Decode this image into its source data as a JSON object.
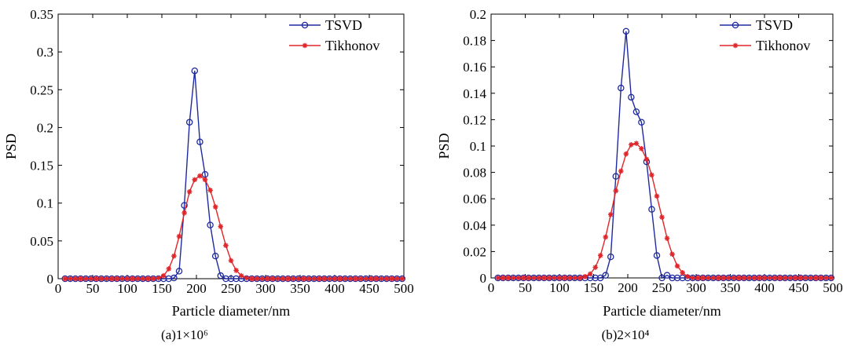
{
  "chart_data": [
    {
      "type": "line",
      "caption": "(a)1×10⁶",
      "xlabel": "Particle diameter/nm",
      "ylabel": "PSD",
      "xlim": [
        0,
        500
      ],
      "ylim": [
        0,
        0.35
      ],
      "xticks": [
        "0",
        "50",
        "100",
        "150",
        "200",
        "250",
        "300",
        "350",
        "400",
        "450",
        "500"
      ],
      "yticks": [
        "0",
        "0.05",
        "0.1",
        "0.15",
        "0.2",
        "0.25",
        "0.3",
        "0.35"
      ],
      "legend_position": "top-right",
      "series": [
        {
          "name": "TSVD",
          "color": "#1f2a9e",
          "marker": "circle",
          "x": [
            10,
            17.5,
            25,
            32.5,
            40,
            47.5,
            55,
            62.5,
            70,
            77.5,
            85,
            92.5,
            100,
            107.5,
            115,
            122.5,
            130,
            137.5,
            145,
            152.5,
            160,
            167.5,
            175,
            182.5,
            190,
            197.5,
            205,
            212.5,
            220,
            227.5,
            235,
            242.5,
            250,
            257.5,
            265,
            272.5,
            280,
            287.5,
            295,
            302.5,
            310,
            317.5,
            325,
            332.5,
            340,
            347.5,
            355,
            362.5,
            370,
            377.5,
            385,
            392.5,
            400,
            407.5,
            415,
            422.5,
            430,
            437.5,
            445,
            452.5,
            460,
            467.5,
            475,
            482.5,
            490,
            497.5
          ],
          "y": [
            0,
            0,
            0,
            0,
            0,
            0,
            0,
            0,
            0,
            0,
            0,
            0,
            0,
            0,
            0,
            0,
            0,
            0,
            0,
            0,
            0,
            0.001,
            0.01,
            0.097,
            0.207,
            0.275,
            0.181,
            0.138,
            0.071,
            0.03,
            0.004,
            0,
            0,
            0,
            0,
            0,
            0,
            0,
            0,
            0,
            0,
            0,
            0,
            0,
            0,
            0,
            0,
            0,
            0,
            0,
            0,
            0,
            0,
            0,
            0,
            0,
            0,
            0,
            0,
            0,
            0,
            0,
            0,
            0,
            0,
            0
          ]
        },
        {
          "name": "Tikhonov",
          "color": "#e0262a",
          "marker": "star",
          "x": [
            10,
            17.5,
            25,
            32.5,
            40,
            47.5,
            55,
            62.5,
            70,
            77.5,
            85,
            92.5,
            100,
            107.5,
            115,
            122.5,
            130,
            137.5,
            145,
            152.5,
            160,
            167.5,
            175,
            182.5,
            190,
            197.5,
            205,
            212.5,
            220,
            227.5,
            235,
            242.5,
            250,
            257.5,
            265,
            272.5,
            280,
            287.5,
            295,
            302.5,
            310,
            317.5,
            325,
            332.5,
            340,
            347.5,
            355,
            362.5,
            370,
            377.5,
            385,
            392.5,
            400,
            407.5,
            415,
            422.5,
            430,
            437.5,
            445,
            452.5,
            460,
            467.5,
            475,
            482.5,
            490,
            497.5
          ],
          "y": [
            0,
            0,
            0,
            0,
            0,
            0,
            0,
            0,
            0,
            0,
            0,
            0,
            0,
            0,
            0,
            0,
            0,
            0,
            0.001,
            0.004,
            0.013,
            0.03,
            0.056,
            0.087,
            0.115,
            0.131,
            0.136,
            0.131,
            0.117,
            0.095,
            0.069,
            0.044,
            0.024,
            0.011,
            0.004,
            0.001,
            0,
            0,
            0,
            0,
            0,
            0,
            0,
            0,
            0,
            0,
            0,
            0,
            0,
            0,
            0,
            0,
            0,
            0,
            0,
            0,
            0,
            0,
            0,
            0,
            0,
            0,
            0,
            0,
            0,
            0
          ]
        }
      ]
    },
    {
      "type": "line",
      "caption": "(b)2×10⁴",
      "xlabel": "Particle diameter/nm",
      "ylabel": "PSD",
      "xlim": [
        0,
        500
      ],
      "ylim": [
        0,
        0.2
      ],
      "xticks": [
        "0",
        "50",
        "100",
        "150",
        "200",
        "250",
        "300",
        "350",
        "400",
        "450",
        "500"
      ],
      "yticks": [
        "0",
        "0.02",
        "0.04",
        "0.06",
        "0.08",
        "0.1",
        "0.12",
        "0.14",
        "0.16",
        "0.18",
        "0.2"
      ],
      "legend_position": "top-right",
      "series": [
        {
          "name": "TSVD",
          "color": "#1f2a9e",
          "marker": "circle",
          "x": [
            10,
            17.5,
            25,
            32.5,
            40,
            47.5,
            55,
            62.5,
            70,
            77.5,
            85,
            92.5,
            100,
            107.5,
            115,
            122.5,
            130,
            137.5,
            145,
            152.5,
            160,
            167.5,
            175,
            182.5,
            190,
            197.5,
            205,
            212.5,
            220,
            227.5,
            235,
            242.5,
            250,
            257.5,
            265,
            272.5,
            280,
            287.5,
            295,
            302.5,
            310,
            317.5,
            325,
            332.5,
            340,
            347.5,
            355,
            362.5,
            370,
            377.5,
            385,
            392.5,
            400,
            407.5,
            415,
            422.5,
            430,
            437.5,
            445,
            452.5,
            460,
            467.5,
            475,
            482.5,
            490,
            497.5
          ],
          "y": [
            0,
            0,
            0,
            0,
            0,
            0,
            0,
            0,
            0,
            0,
            0,
            0,
            0,
            0,
            0,
            0,
            0,
            0,
            0,
            0,
            0,
            0.002,
            0.016,
            0.077,
            0.144,
            0.187,
            0.137,
            0.126,
            0.118,
            0.088,
            0.052,
            0.017,
            0,
            0.002,
            0,
            0,
            0,
            0,
            0,
            0,
            0,
            0,
            0,
            0,
            0,
            0,
            0,
            0,
            0,
            0,
            0,
            0,
            0,
            0,
            0,
            0,
            0,
            0,
            0,
            0,
            0,
            0,
            0,
            0,
            0,
            0
          ]
        },
        {
          "name": "Tikhonov",
          "color": "#e0262a",
          "marker": "star",
          "x": [
            10,
            17.5,
            25,
            32.5,
            40,
            47.5,
            55,
            62.5,
            70,
            77.5,
            85,
            92.5,
            100,
            107.5,
            115,
            122.5,
            130,
            137.5,
            145,
            152.5,
            160,
            167.5,
            175,
            182.5,
            190,
            197.5,
            205,
            212.5,
            220,
            227.5,
            235,
            242.5,
            250,
            257.5,
            265,
            272.5,
            280,
            287.5,
            295,
            302.5,
            310,
            317.5,
            325,
            332.5,
            340,
            347.5,
            355,
            362.5,
            370,
            377.5,
            385,
            392.5,
            400,
            407.5,
            415,
            422.5,
            430,
            437.5,
            445,
            452.5,
            460,
            467.5,
            475,
            482.5,
            490,
            497.5
          ],
          "y": [
            0,
            0,
            0,
            0,
            0,
            0,
            0,
            0,
            0,
            0,
            0,
            0,
            0,
            0,
            0,
            0,
            0,
            0.001,
            0.003,
            0.008,
            0.017,
            0.031,
            0.048,
            0.066,
            0.081,
            0.094,
            0.101,
            0.102,
            0.098,
            0.09,
            0.078,
            0.062,
            0.046,
            0.03,
            0.018,
            0.009,
            0.004,
            0.001,
            0,
            0,
            0,
            0,
            0,
            0,
            0,
            0,
            0,
            0,
            0,
            0,
            0,
            0,
            0,
            0,
            0,
            0,
            0,
            0,
            0,
            0,
            0,
            0,
            0,
            0,
            0,
            0
          ]
        }
      ]
    }
  ]
}
